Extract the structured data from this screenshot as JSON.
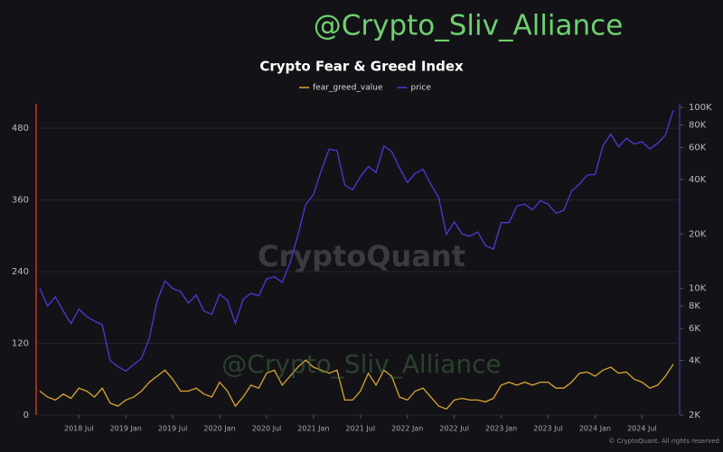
{
  "chart_data": {
    "type": "line",
    "title": "Crypto Fear & Greed Index",
    "watermark_top": "@Crypto_Sliv_Alliance",
    "watermark_middle": "@Crypto_Sliv_Alliance",
    "watermark_brand": "CryptoQuant",
    "footer": "© CryptoQuant. All rights reserved",
    "x": [
      "2018 Feb",
      "2018 Mar",
      "2018 Apr",
      "2018 May",
      "2018 Jun",
      "2018 Jul",
      "2018 Aug",
      "2018 Sep",
      "2018 Oct",
      "2018 Nov",
      "2018 Dec",
      "2019 Jan",
      "2019 Feb",
      "2019 Mar",
      "2019 Apr",
      "2019 May",
      "2019 Jun",
      "2019 Jul",
      "2019 Aug",
      "2019 Sep",
      "2019 Oct",
      "2019 Nov",
      "2019 Dec",
      "2020 Jan",
      "2020 Feb",
      "2020 Mar",
      "2020 Apr",
      "2020 May",
      "2020 Jun",
      "2020 Jul",
      "2020 Aug",
      "2020 Sep",
      "2020 Oct",
      "2020 Nov",
      "2020 Dec",
      "2021 Jan",
      "2021 Feb",
      "2021 Mar",
      "2021 Apr",
      "2021 May",
      "2021 Jun",
      "2021 Jul",
      "2021 Aug",
      "2021 Sep",
      "2021 Oct",
      "2021 Nov",
      "2021 Dec",
      "2022 Jan",
      "2022 Feb",
      "2022 Mar",
      "2022 Apr",
      "2022 May",
      "2022 Jun",
      "2022 Jul",
      "2022 Aug",
      "2022 Sep",
      "2022 Oct",
      "2022 Nov",
      "2022 Dec",
      "2023 Jan",
      "2023 Feb",
      "2023 Mar",
      "2023 Apr",
      "2023 May",
      "2023 Jun",
      "2023 Jul",
      "2023 Aug",
      "2023 Sep",
      "2023 Oct",
      "2023 Nov",
      "2023 Dec",
      "2024 Jan",
      "2024 Feb",
      "2024 Mar",
      "2024 Apr",
      "2024 May",
      "2024 Jun",
      "2024 Jul",
      "2024 Aug",
      "2024 Sep",
      "2024 Oct",
      "2024 Nov"
    ],
    "xticks": [
      "2018 Jul",
      "2019 Jan",
      "2019 Jul",
      "2020 Jan",
      "2020 Jul",
      "2021 Jan",
      "2021 Jul",
      "2022 Jan",
      "2022 Jul",
      "2023 Jan",
      "2023 Jul",
      "2024 Jan",
      "2024 Jul"
    ],
    "ylim": [
      0,
      515
    ],
    "yticks": [
      0,
      120,
      240,
      360,
      480
    ],
    "y2lim": [
      2000,
      100000
    ],
    "y2_log": true,
    "y2ticks": [
      {
        "value": 2000,
        "label": "2K"
      },
      {
        "value": 4000,
        "label": "4K"
      },
      {
        "value": 6000,
        "label": "6K"
      },
      {
        "value": 8000,
        "label": "8K"
      },
      {
        "value": 10000,
        "label": "10K"
      },
      {
        "value": 20000,
        "label": "20K"
      },
      {
        "value": 40000,
        "label": "40K"
      },
      {
        "value": 60000,
        "label": "60K"
      },
      {
        "value": 80000,
        "label": "80K"
      },
      {
        "value": 100000,
        "label": "100K"
      }
    ],
    "grid": true,
    "legend": "top",
    "series": [
      {
        "name": "fear_greed_value",
        "color": "#d9a531",
        "values": [
          40,
          30,
          25,
          35,
          28,
          45,
          40,
          30,
          45,
          20,
          15,
          25,
          30,
          40,
          55,
          65,
          75,
          60,
          40,
          40,
          45,
          35,
          30,
          55,
          40,
          15,
          30,
          50,
          45,
          70,
          75,
          50,
          65,
          80,
          92,
          80,
          75,
          70,
          75,
          25,
          25,
          40,
          70,
          50,
          75,
          65,
          30,
          25,
          40,
          45,
          30,
          15,
          10,
          25,
          28,
          25,
          25,
          22,
          28,
          50,
          55,
          50,
          55,
          50,
          55,
          55,
          45,
          45,
          55,
          70,
          72,
          65,
          75,
          80,
          70,
          72,
          60,
          55,
          45,
          50,
          65,
          85
        ]
      },
      {
        "name": "price",
        "color": "#4a3ad8",
        "axis": "y2",
        "values": [
          10000,
          8000,
          9000,
          7500,
          6400,
          7700,
          7000,
          6600,
          6300,
          4000,
          3700,
          3500,
          3800,
          4100,
          5300,
          8500,
          11000,
          10000,
          9600,
          8300,
          9200,
          7500,
          7200,
          9300,
          8600,
          6400,
          8700,
          9400,
          9100,
          11300,
          11600,
          10800,
          13800,
          19700,
          29000,
          33100,
          45000,
          58800,
          57700,
          37300,
          35000,
          41500,
          47100,
          43800,
          61300,
          57000,
          46300,
          38500,
          43200,
          45500,
          37700,
          31800,
          19900,
          23300,
          20000,
          19400,
          20500,
          17200,
          16500,
          23100,
          23100,
          28500,
          29200,
          27200,
          30500,
          29200,
          26000,
          27000,
          34500,
          37700,
          42300,
          42600,
          61200,
          71300,
          60600,
          67500,
          62700,
          64600,
          59000,
          63300,
          70200,
          96400
        ]
      }
    ]
  }
}
